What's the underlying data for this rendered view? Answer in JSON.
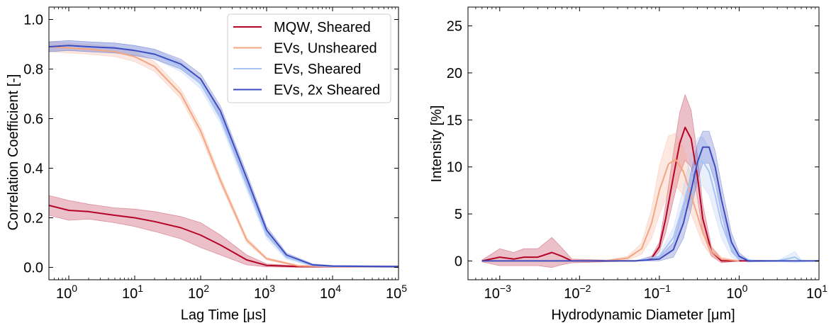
{
  "chart_data": [
    {
      "type": "line",
      "xlabel": "Lag Time [μs]",
      "ylabel": "Correlation Coefficient [-]",
      "xscale": "log",
      "xlim": [
        0.5,
        100000
      ],
      "ylim": [
        -0.05,
        1.05
      ],
      "xticks": [
        {
          "value": 1,
          "base": "10",
          "exp": "0"
        },
        {
          "value": 10,
          "base": "10",
          "exp": "1"
        },
        {
          "value": 100,
          "base": "10",
          "exp": "2"
        },
        {
          "value": 1000,
          "base": "10",
          "exp": "3"
        },
        {
          "value": 10000,
          "base": "10",
          "exp": "4"
        },
        {
          "value": 100000,
          "base": "10",
          "exp": "5"
        }
      ],
      "yticks": [
        {
          "value": 0.0,
          "label": "0.0"
        },
        {
          "value": 0.2,
          "label": "0.2"
        },
        {
          "value": 0.4,
          "label": "0.4"
        },
        {
          "value": 0.6,
          "label": "0.6"
        },
        {
          "value": 0.8,
          "label": "0.8"
        },
        {
          "value": 1.0,
          "label": "1.0"
        }
      ],
      "legend_position": "top-right",
      "series": [
        {
          "name": "MQW, Sheared",
          "color": "#b40426",
          "points": [
            [
              0.5,
              0.25
            ],
            [
              1,
              0.23
            ],
            [
              2,
              0.225
            ],
            [
              5,
              0.21
            ],
            [
              10,
              0.2
            ],
            [
              20,
              0.185
            ],
            [
              50,
              0.16
            ],
            [
              100,
              0.13
            ],
            [
              200,
              0.09
            ],
            [
              500,
              0.03
            ],
            [
              1000,
              0.008
            ],
            [
              3000,
              0.003
            ],
            [
              10000,
              0.003
            ],
            [
              100000,
              0.003
            ]
          ],
          "band": [
            0.04,
            0.04,
            0.03,
            0.03,
            0.035,
            0.04,
            0.045,
            0.05,
            0.04,
            0.02,
            0.006,
            0.003,
            0.003,
            0.003
          ]
        },
        {
          "name": "EVs, Unsheared",
          "color": "#f4a582",
          "points": [
            [
              0.5,
              0.89
            ],
            [
              1,
              0.885
            ],
            [
              2,
              0.88
            ],
            [
              5,
              0.87
            ],
            [
              10,
              0.85
            ],
            [
              20,
              0.81
            ],
            [
              50,
              0.7
            ],
            [
              100,
              0.55
            ],
            [
              200,
              0.35
            ],
            [
              500,
              0.11
            ],
            [
              1000,
              0.035
            ],
            [
              3000,
              0.006
            ],
            [
              10000,
              0.003
            ],
            [
              100000,
              0.003
            ]
          ],
          "band": [
            0.02,
            0.02,
            0.02,
            0.02,
            0.02,
            0.02,
            0.02,
            0.02,
            0.015,
            0.01,
            0.005,
            0.003,
            0.003,
            0.003
          ]
        },
        {
          "name": "EVs, Sheared",
          "color": "#a6c4f5",
          "points": [
            [
              0.5,
              0.89
            ],
            [
              1,
              0.895
            ],
            [
              2,
              0.89
            ],
            [
              5,
              0.885
            ],
            [
              10,
              0.875
            ],
            [
              20,
              0.86
            ],
            [
              50,
              0.81
            ],
            [
              100,
              0.74
            ],
            [
              200,
              0.6
            ],
            [
              500,
              0.33
            ],
            [
              1000,
              0.13
            ],
            [
              2000,
              0.04
            ],
            [
              5000,
              0.008
            ],
            [
              10000,
              0.004
            ],
            [
              100000,
              0.003
            ]
          ],
          "band": [
            0.02,
            0.02,
            0.02,
            0.02,
            0.02,
            0.02,
            0.02,
            0.02,
            0.02,
            0.02,
            0.015,
            0.008,
            0.004,
            0.003,
            0.003
          ]
        },
        {
          "name": "EVs, 2x Sheared",
          "color": "#3b4cc0",
          "points": [
            [
              0.5,
              0.89
            ],
            [
              1,
              0.895
            ],
            [
              2,
              0.89
            ],
            [
              5,
              0.885
            ],
            [
              10,
              0.875
            ],
            [
              20,
              0.86
            ],
            [
              50,
              0.82
            ],
            [
              100,
              0.76
            ],
            [
              200,
              0.63
            ],
            [
              500,
              0.36
            ],
            [
              1000,
              0.15
            ],
            [
              2000,
              0.05
            ],
            [
              5000,
              0.01
            ],
            [
              10000,
              0.005
            ],
            [
              100000,
              0.003
            ]
          ],
          "band": [
            0.02,
            0.02,
            0.02,
            0.02,
            0.02,
            0.02,
            0.02,
            0.02,
            0.02,
            0.02,
            0.015,
            0.008,
            0.004,
            0.003,
            0.003
          ]
        }
      ]
    },
    {
      "type": "line",
      "xlabel": "Hydrodynamic Diameter [μm]",
      "ylabel": "Intensity [%]",
      "xscale": "log",
      "xlim": [
        0.0004,
        10
      ],
      "ylim": [
        -2,
        27
      ],
      "xticks": [
        {
          "value": 0.001,
          "base": "10",
          "exp": "−3"
        },
        {
          "value": 0.01,
          "base": "10",
          "exp": "−2"
        },
        {
          "value": 0.1,
          "base": "10",
          "exp": "−1"
        },
        {
          "value": 1,
          "base": "10",
          "exp": "0"
        },
        {
          "value": 10,
          "base": "10",
          "exp": "1"
        }
      ],
      "yticks": [
        {
          "value": 0,
          "label": "0"
        },
        {
          "value": 5,
          "label": "5"
        },
        {
          "value": 10,
          "label": "10"
        },
        {
          "value": 15,
          "label": "15"
        },
        {
          "value": 20,
          "label": "20"
        },
        {
          "value": 25,
          "label": "25"
        }
      ],
      "series": [
        {
          "name": "MQW, Sheared",
          "color": "#b40426",
          "points": [
            [
              0.0006,
              0
            ],
            [
              0.001,
              0.4
            ],
            [
              0.0015,
              0.2
            ],
            [
              0.002,
              0.4
            ],
            [
              0.003,
              0.4
            ],
            [
              0.0045,
              0.9
            ],
            [
              0.006,
              0.5
            ],
            [
              0.008,
              0
            ],
            [
              0.05,
              0
            ],
            [
              0.08,
              0.3
            ],
            [
              0.1,
              1.5
            ],
            [
              0.12,
              4.5
            ],
            [
              0.15,
              9
            ],
            [
              0.18,
              12.5
            ],
            [
              0.21,
              14.2
            ],
            [
              0.25,
              13
            ],
            [
              0.3,
              9
            ],
            [
              0.35,
              4.5
            ],
            [
              0.45,
              1
            ],
            [
              0.6,
              0
            ],
            [
              1,
              0
            ],
            [
              2,
              0
            ]
          ],
          "band": [
            0.1,
            0.9,
            0.7,
            0.9,
            0.9,
            1.6,
            0.9,
            0.2,
            0,
            0.2,
            0.5,
            1.5,
            2.5,
            3.3,
            3.5,
            3,
            2.3,
            1.5,
            0.5,
            0.2,
            0,
            0
          ]
        },
        {
          "name": "EVs, Unsheared",
          "color": "#f4a582",
          "points": [
            [
              0.02,
              0
            ],
            [
              0.04,
              0.3
            ],
            [
              0.06,
              1.3
            ],
            [
              0.08,
              4
            ],
            [
              0.1,
              7.5
            ],
            [
              0.13,
              10.3
            ],
            [
              0.16,
              10.8
            ],
            [
              0.2,
              9.5
            ],
            [
              0.25,
              7
            ],
            [
              0.35,
              3
            ],
            [
              0.45,
              1
            ],
            [
              0.6,
              0.2
            ],
            [
              1,
              0
            ]
          ],
          "band": [
            0,
            0.2,
            0.6,
            1.6,
            2.6,
            3,
            2.8,
            2.5,
            2,
            1.2,
            0.5,
            0.2,
            0
          ]
        },
        {
          "name": "EVs, Sheared",
          "color": "#a6c4f5",
          "points": [
            [
              0.05,
              0
            ],
            [
              0.1,
              0.5
            ],
            [
              0.15,
              2.5
            ],
            [
              0.2,
              6
            ],
            [
              0.25,
              9
            ],
            [
              0.3,
              10.5
            ],
            [
              0.35,
              10.6
            ],
            [
              0.42,
              9.5
            ],
            [
              0.5,
              7
            ],
            [
              0.6,
              4
            ],
            [
              0.8,
              1.2
            ],
            [
              1,
              0.3
            ],
            [
              1.5,
              0
            ],
            [
              3,
              0
            ],
            [
              5,
              0.4
            ],
            [
              6,
              0
            ],
            [
              10,
              0
            ]
          ],
          "band": [
            0,
            0.3,
            1,
            1.8,
            2.3,
            2.6,
            2.6,
            2.5,
            2.2,
            1.6,
            0.8,
            0.3,
            0,
            0,
            0.6,
            0.1,
            0
          ]
        },
        {
          "name": "EVs, 2x Sheared",
          "color": "#3b4cc0",
          "points": [
            [
              0.0006,
              0
            ],
            [
              0.05,
              0
            ],
            [
              0.1,
              0.2
            ],
            [
              0.15,
              1.2
            ],
            [
              0.2,
              4
            ],
            [
              0.25,
              7.5
            ],
            [
              0.3,
              10.5
            ],
            [
              0.35,
              12.1
            ],
            [
              0.42,
              12.1
            ],
            [
              0.5,
              10
            ],
            [
              0.6,
              6.5
            ],
            [
              0.8,
              2
            ],
            [
              1,
              0.5
            ],
            [
              1.3,
              0
            ],
            [
              10,
              0
            ]
          ],
          "band": [
            0,
            0,
            0.2,
            0.8,
            1.6,
            2,
            1.9,
            1.7,
            1.7,
            1.7,
            1.6,
            1,
            0.4,
            0.1,
            0
          ]
        }
      ]
    }
  ]
}
